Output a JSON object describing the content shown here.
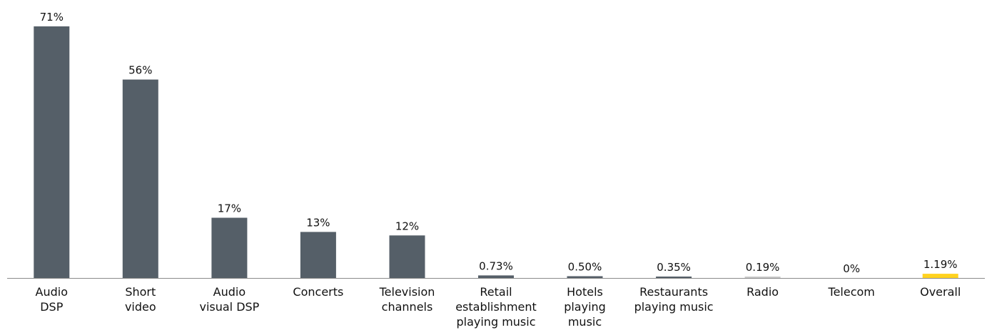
{
  "chart_data": {
    "type": "bar",
    "title": "",
    "xlabel": "",
    "ylabel": "",
    "ylim": [
      0,
      71
    ],
    "grid": false,
    "legend": "none",
    "categories": [
      [
        "Audio",
        "DSP"
      ],
      [
        "Short",
        "video"
      ],
      [
        "Audio",
        "visual DSP"
      ],
      [
        "Concerts"
      ],
      [
        "Television",
        "channels"
      ],
      [
        "Retail",
        "establishment",
        "playing music"
      ],
      [
        "Hotels",
        "playing",
        "music"
      ],
      [
        "Restaurants",
        "playing music"
      ],
      [
        "Radio"
      ],
      [
        "Telecom"
      ],
      [
        "Overall"
      ]
    ],
    "values": [
      71,
      56,
      17,
      13,
      12,
      0.73,
      0.5,
      0.35,
      0.19,
      0,
      1.19
    ],
    "value_labels": [
      "71%",
      "56%",
      "17%",
      "13%",
      "12%",
      "0.73%",
      "0.50%",
      "0.35%",
      "0.19%",
      "0%",
      "1.19%"
    ],
    "bar_colors": [
      "#555f68",
      "#555f68",
      "#555f68",
      "#555f68",
      "#555f68",
      "#555f68",
      "#555f68",
      "#555f68",
      "#c9c9c9",
      "#555f68",
      "#ffd21f"
    ]
  },
  "colors": {
    "bar": "#555f68",
    "highlight": "#ffd21f",
    "axis": "#8a8a8a",
    "text": "#111111"
  }
}
